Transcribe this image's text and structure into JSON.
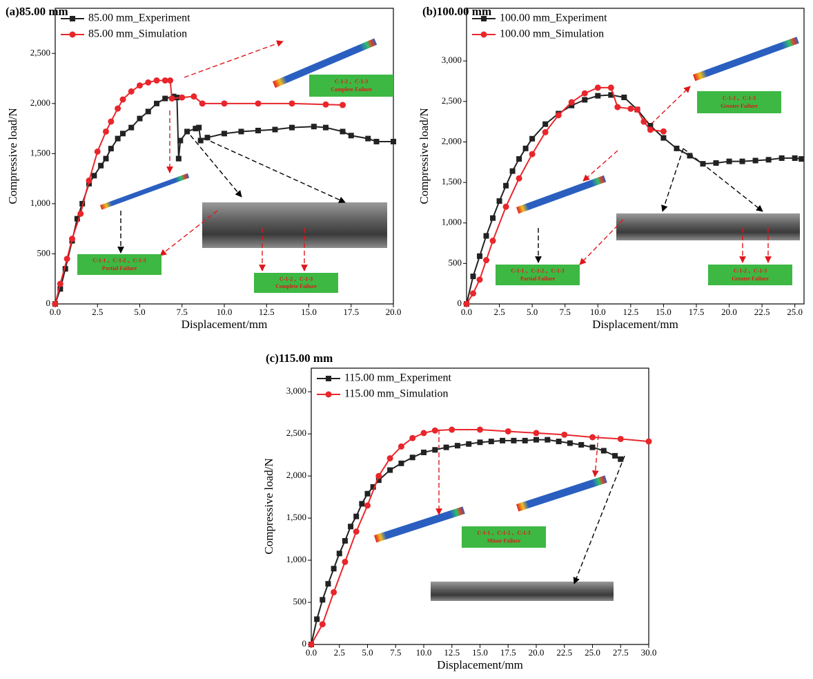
{
  "chart_data": [
    {
      "type": "line",
      "title": "(a)85.00 mm",
      "x_label": "Displacement/mm",
      "y_label": "Compressive load/N",
      "xlim": [
        0,
        20
      ],
      "ylim": [
        0,
        2950
      ],
      "xticks": [
        {
          "value": 0,
          "label": "0.0"
        },
        2.5,
        {
          "value": 5,
          "label": "5.0"
        },
        7.5,
        {
          "value": 10,
          "label": "10.0"
        },
        12.5,
        {
          "value": 15,
          "label": "15.0"
        },
        17.5,
        {
          "value": 20,
          "label": "20.0"
        }
      ],
      "yticks": [
        0,
        500,
        {
          "value": 1000,
          "label": "1,000"
        },
        {
          "value": 1500,
          "label": "1,500"
        },
        {
          "value": 2000,
          "label": "2,000"
        },
        {
          "value": 2500,
          "label": "2,500"
        }
      ],
      "series": [
        {
          "name": "85.00 mm_Experiment",
          "color": "#222222",
          "marker": "square",
          "x": [
            0,
            0.3,
            0.6,
            1,
            1.3,
            1.6,
            2,
            2.3,
            2.7,
            3,
            3.3,
            3.7,
            4,
            4.5,
            5,
            5.5,
            6,
            6.5,
            7,
            7.2,
            7.3,
            7.4,
            7.8,
            8.3,
            8.5,
            8.6,
            9,
            10,
            11,
            12,
            13,
            14,
            15.3,
            16,
            17,
            17.5,
            18.5,
            19,
            20
          ],
          "values": [
            0,
            150,
            350,
            630,
            850,
            1000,
            1200,
            1280,
            1380,
            1450,
            1550,
            1650,
            1700,
            1760,
            1850,
            1920,
            2000,
            2050,
            2070,
            2060,
            1450,
            1630,
            1720,
            1750,
            1760,
            1630,
            1660,
            1700,
            1720,
            1730,
            1740,
            1760,
            1770,
            1760,
            1720,
            1680,
            1650,
            1620,
            1620
          ]
        },
        {
          "name": "85.00 mm_Simulation",
          "color": "#e8262b",
          "marker": "circle",
          "x": [
            0,
            0.3,
            0.7,
            1,
            1.5,
            2,
            2.5,
            3,
            3.3,
            3.7,
            4,
            4.5,
            5,
            5.5,
            6,
            6.5,
            6.8,
            6.9,
            7.5,
            8.2,
            8.7,
            10,
            12,
            14,
            16,
            17
          ],
          "values": [
            0,
            200,
            450,
            650,
            900,
            1230,
            1520,
            1720,
            1820,
            1950,
            2040,
            2120,
            2180,
            2210,
            2230,
            2230,
            2230,
            2050,
            2060,
            2070,
            2000,
            2000,
            2000,
            2000,
            1990,
            1985
          ]
        }
      ],
      "annotations": [
        [
          "C-1-2 、C-1-3",
          "Complete Failure"
        ],
        [
          "C-1-1 、C-1-2 、C-1-3",
          "Partial Failure"
        ],
        [
          "C-1-2 、C-1-3",
          "Complete Failure"
        ]
      ]
    },
    {
      "type": "line",
      "title": "(b)100.00 mm",
      "x_label": "Displacement/mm",
      "y_label": "Compressive load/N",
      "xlim": [
        0,
        25.7
      ],
      "ylim": [
        0,
        3650
      ],
      "xticks": [
        {
          "value": 0,
          "label": "0.0"
        },
        2.5,
        {
          "value": 5,
          "label": "5.0"
        },
        7.5,
        {
          "value": 10,
          "label": "10.0"
        },
        12.5,
        {
          "value": 15,
          "label": "15.0"
        },
        17.5,
        {
          "value": 20,
          "label": "20.0"
        },
        22.5,
        {
          "value": 25,
          "label": "25.0"
        }
      ],
      "yticks": [
        0,
        500,
        {
          "value": 1000,
          "label": "1,000"
        },
        {
          "value": 1500,
          "label": "1,500"
        },
        {
          "value": 2000,
          "label": "2,000"
        },
        {
          "value": 2500,
          "label": "2,500"
        },
        {
          "value": 3000,
          "label": "3,000"
        }
      ],
      "series": [
        {
          "name": "100.00 mm_Experiment",
          "color": "#222222",
          "marker": "square",
          "x": [
            0,
            0.5,
            1,
            1.5,
            2,
            2.5,
            3,
            3.5,
            4,
            4.5,
            5,
            6,
            7,
            8,
            9,
            10,
            11,
            12,
            13,
            14,
            15,
            16,
            17,
            18,
            19,
            20,
            21,
            22,
            23,
            24,
            25,
            25.5
          ],
          "values": [
            0,
            340,
            590,
            840,
            1060,
            1270,
            1460,
            1640,
            1790,
            1920,
            2040,
            2220,
            2350,
            2450,
            2520,
            2570,
            2580,
            2550,
            2400,
            2200,
            2050,
            1920,
            1830,
            1730,
            1740,
            1760,
            1760,
            1770,
            1780,
            1800,
            1800,
            1790
          ]
        },
        {
          "name": "100.00 mm_Simulation",
          "color": "#e8262b",
          "marker": "circle",
          "x": [
            0,
            0.5,
            1,
            1.5,
            2,
            3,
            4,
            5,
            6,
            7,
            8,
            9,
            10,
            11,
            11.5,
            12.5,
            13,
            13.5,
            14,
            15
          ],
          "values": [
            0,
            130,
            300,
            540,
            780,
            1200,
            1550,
            1850,
            2120,
            2330,
            2490,
            2600,
            2670,
            2670,
            2430,
            2410,
            2400,
            2250,
            2150,
            2130
          ]
        }
      ],
      "annotations": [
        [
          "C-1-2 、C-1-3",
          "Greater Failure"
        ],
        [
          "C-1-1 、C-1-2 、C-1-3",
          "Partial Failure"
        ],
        [
          "C-1-2 、C-1-3",
          "Greater Failure"
        ]
      ]
    },
    {
      "type": "line",
      "title": "(c)115.00 mm",
      "x_label": "Displacement/mm",
      "y_label": "Compressive load/N",
      "xlim": [
        0,
        30
      ],
      "ylim": [
        0,
        3280
      ],
      "xticks": [
        {
          "value": 0,
          "label": "0.0"
        },
        2.5,
        {
          "value": 5,
          "label": "5.0"
        },
        7.5,
        {
          "value": 10,
          "label": "10.0"
        },
        12.5,
        {
          "value": 15,
          "label": "15.0"
        },
        17.5,
        {
          "value": 20,
          "label": "20.0"
        },
        22.5,
        {
          "value": 25,
          "label": "25.0"
        },
        27.5,
        {
          "value": 30,
          "label": "30.0"
        }
      ],
      "yticks": [
        0,
        500,
        {
          "value": 1000,
          "label": "1,000"
        },
        {
          "value": 1500,
          "label": "1,500"
        },
        {
          "value": 2000,
          "label": "2,000"
        },
        {
          "value": 2500,
          "label": "2,500"
        },
        {
          "value": 3000,
          "label": "3,000"
        }
      ],
      "series": [
        {
          "name": "115.00 mm_Experiment",
          "color": "#222222",
          "marker": "square",
          "x": [
            0,
            0.5,
            1,
            1.5,
            2,
            2.5,
            3,
            3.5,
            4,
            4.5,
            5,
            5.5,
            6,
            7,
            8,
            9,
            10,
            11,
            12,
            13,
            14,
            15,
            16,
            17,
            18,
            19,
            20,
            21,
            22,
            23,
            24,
            25,
            26,
            27,
            27.5
          ],
          "values": [
            0,
            300,
            530,
            720,
            900,
            1080,
            1230,
            1400,
            1520,
            1670,
            1790,
            1870,
            1950,
            2070,
            2150,
            2220,
            2280,
            2310,
            2340,
            2360,
            2380,
            2400,
            2410,
            2420,
            2420,
            2420,
            2430,
            2430,
            2410,
            2390,
            2370,
            2340,
            2300,
            2240,
            2200
          ]
        },
        {
          "name": "115.00 mm_Simulation",
          "color": "#e8262b",
          "marker": "circle",
          "x": [
            0,
            1,
            2,
            3,
            4,
            5,
            6,
            7,
            8,
            9,
            10,
            11,
            12.5,
            15,
            17.5,
            20,
            22.5,
            25,
            27.5,
            30
          ],
          "values": [
            0,
            240,
            620,
            980,
            1340,
            1650,
            2000,
            2210,
            2350,
            2450,
            2510,
            2540,
            2550,
            2550,
            2530,
            2510,
            2490,
            2460,
            2440,
            2410
          ]
        }
      ],
      "annotations": [
        [
          "C-1-1 、C-1-2 、C-1-3",
          "Minor Failure"
        ]
      ]
    }
  ]
}
